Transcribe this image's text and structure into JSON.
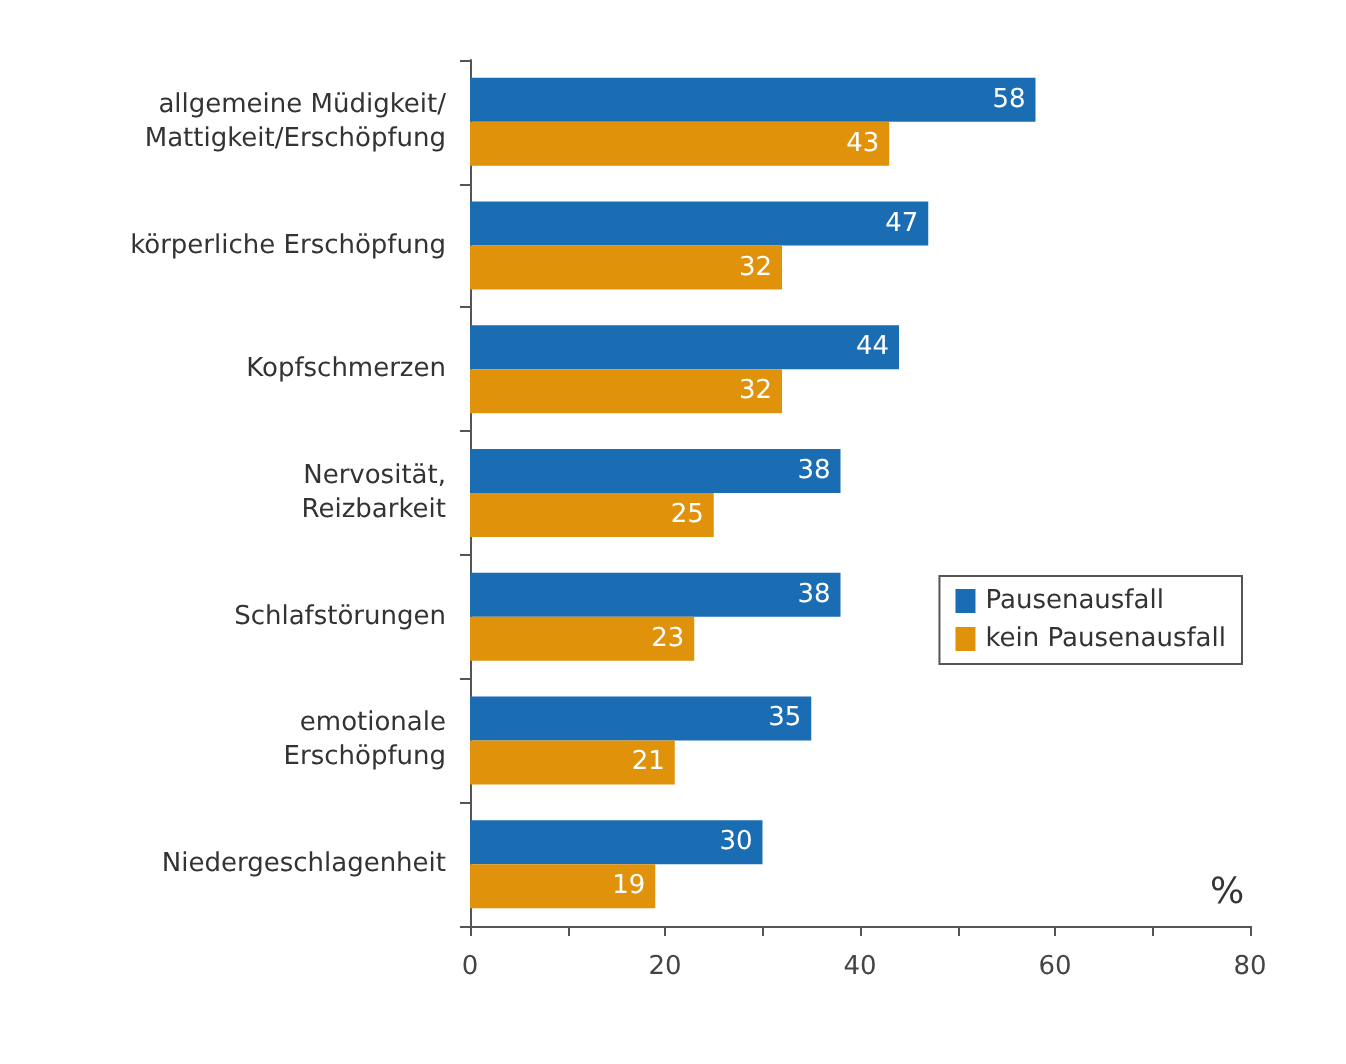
{
  "chart_data": {
    "type": "bar",
    "orientation": "horizontal",
    "xlabel": "%",
    "categories": [
      "allgemeine Müdigkeit/\nMattigkeit/Erschöpfung",
      "körperliche Erschöpfung",
      "Kopfschmerzen",
      "Nervosität,\nReizbarkeit",
      "Schlafstörungen",
      "emotionale\nErschöpfung",
      "Niedergeschlagenheit"
    ],
    "series": [
      {
        "name": "Pausenausfall",
        "color": "#1a6db3",
        "values": [
          58,
          47,
          44,
          38,
          38,
          35,
          30
        ]
      },
      {
        "name": "kein Pausenausfall",
        "color": "#e0920a",
        "values": [
          43,
          32,
          32,
          25,
          23,
          21,
          19
        ]
      }
    ],
    "xlim": [
      0,
      80
    ],
    "xticks": [
      0,
      {
        "value": 10,
        "label": null
      },
      20,
      {
        "value": 30,
        "label": null
      },
      40,
      {
        "value": 50,
        "label": null
      },
      60,
      {
        "value": 70,
        "label": null
      },
      80
    ],
    "data_labels": true,
    "legend": "right",
    "grid": false
  }
}
